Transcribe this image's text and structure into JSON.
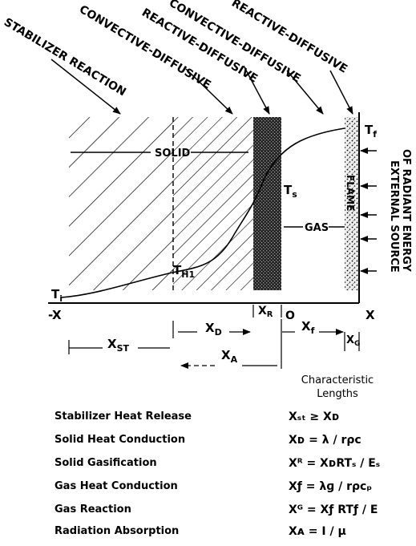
{
  "regions": {
    "stabilizer_reaction": "STABILIZER REACTION",
    "convective_diffusive_1": "CONVECTIVE-DIFFUSIVE",
    "reactive_diffusive_1": "REACTIVE-DIFFUSIVE",
    "convective_diffusive_2": "CONVECTIVE-DIFFUSIVE",
    "reactive_diffusive_2": "REACTIVE-DIFFUSIVE"
  },
  "phases": {
    "solid": "SOLID",
    "gas": "GAS"
  },
  "temperatures": {
    "ti": "T",
    "ti_sub": "i",
    "th1": "T",
    "th1_sub": "H1",
    "ts": "T",
    "ts_sub": "s",
    "tf": "T",
    "tf_sub": "f"
  },
  "axis": {
    "neg_x": "-X",
    "origin": "O",
    "x": "X"
  },
  "lengths": {
    "xst": "X",
    "xst_sub": "ST",
    "xd": "X",
    "xd_sub": "D",
    "xr": "X",
    "xr_sub": "R",
    "xf": "X",
    "xf_sub": "f",
    "xg": "X",
    "xg_sub": "G",
    "xa": "X",
    "xa_sub": "A"
  },
  "flame": "FLAME",
  "external_source": {
    "line1": "EXTERNAL SOURCE",
    "line2": "OF RADIANT ENERGY"
  },
  "table": {
    "caption_line1": "Characteristic",
    "caption_line2": "Lengths",
    "rows": [
      {
        "name": "Stabilizer Heat Release",
        "formula": "Xₛₜ ≥ Xᴅ"
      },
      {
        "name": "Solid Heat Conduction",
        "formula": "Xᴅ = λ / rρc"
      },
      {
        "name": "Solid Gasification",
        "formula": "Xᴿ = XᴅRTₛ / Eₛ"
      },
      {
        "name": "Gas Heat Conduction",
        "formula": "Xƒ = λɡ / rρcₚ"
      },
      {
        "name": "Gas Reaction",
        "formula": "Xᴳ = Xƒ RTƒ / E"
      },
      {
        "name": "Radiation Absorption",
        "formula": "Xᴀ = I / μ"
      }
    ]
  }
}
